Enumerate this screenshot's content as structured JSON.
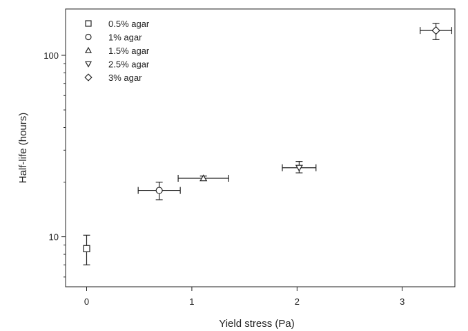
{
  "chart_data": {
    "type": "scatter",
    "title": "",
    "xlabel": "Yield stress (Pa)",
    "ylabel": "Half-life (hours)",
    "xlim": [
      -0.2,
      3.5
    ],
    "ylim": [
      5.3,
      180
    ],
    "yscale": "log",
    "grid": false,
    "legend_position": "top-left",
    "x_ticks": [
      {
        "value": 0,
        "label": "0"
      },
      {
        "value": 1,
        "label": "1"
      },
      {
        "value": 2,
        "label": "2"
      },
      {
        "value": 3,
        "label": "3"
      }
    ],
    "y_ticks": [
      {
        "value": 10,
        "label": "10"
      },
      {
        "value": 100,
        "label": "100"
      }
    ],
    "series": [
      {
        "name": "0.5% agar",
        "marker": "square",
        "x": 0.0,
        "y": 8.6,
        "x_err": 0.0,
        "y_low": 7.0,
        "y_high": 10.2
      },
      {
        "name": "1% agar",
        "marker": "circle",
        "x": 0.69,
        "y": 18.0,
        "x_err": 0.2,
        "y_low": 16.0,
        "y_high": 20.0
      },
      {
        "name": "1.5% agar",
        "marker": "triangle-up",
        "x": 1.11,
        "y": 21.0,
        "x_err": 0.24,
        "y_low": 20.4,
        "y_high": 21.6
      },
      {
        "name": "2.5% agar",
        "marker": "triangle-down",
        "x": 2.02,
        "y": 24.0,
        "x_err": 0.16,
        "y_low": 22.5,
        "y_high": 26.0
      },
      {
        "name": "3% agar",
        "marker": "diamond",
        "x": 3.32,
        "y": 137,
        "x_err": 0.15,
        "y_low": 122,
        "y_high": 150
      }
    ]
  }
}
